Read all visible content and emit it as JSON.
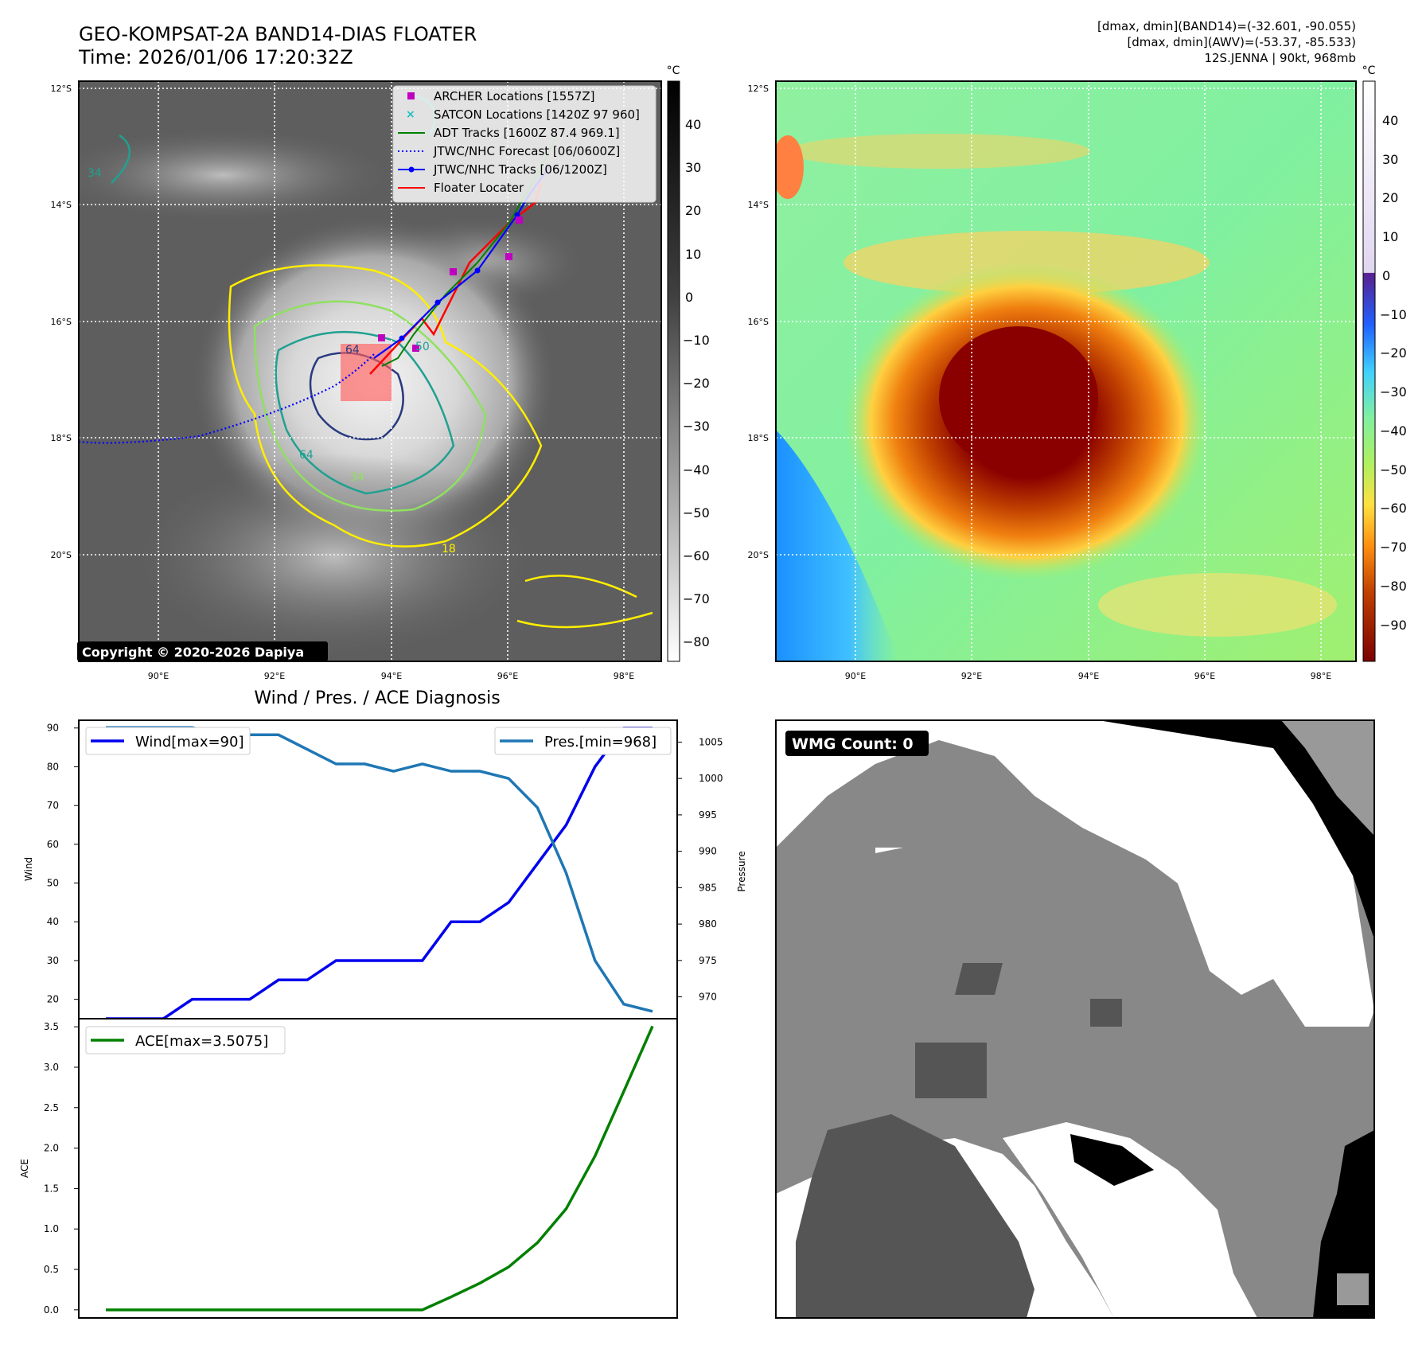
{
  "header": {
    "title": "GEO-KOMPSAT-2A BAND14-DIAS FLOATER",
    "time": "Time: 2026/01/06 17:20:32Z",
    "info_lines": [
      "[dmax, dmin](BAND14)=(-32.601, -90.055)",
      "[dmax, dmin](AWV)=(-53.37, -85.533)",
      "12S.JENNA | 90kt, 968mb"
    ]
  },
  "ir_panel": {
    "lat_labels": [
      "12°S",
      "14°S",
      "16°S",
      "18°S",
      "20°S"
    ],
    "lon_labels": [
      "90°E",
      "92°E",
      "94°E",
      "96°E",
      "98°E"
    ],
    "legend": [
      {
        "label": "ARCHER Locations [1557Z]",
        "style": "square",
        "color": "#c000c0"
      },
      {
        "label": "SATCON Locations [1420Z 97 960]",
        "style": "x",
        "color": "#20c0c0"
      },
      {
        "label": "ADT Tracks [1600Z 87.4 969.1]",
        "style": "line",
        "color": "#008000"
      },
      {
        "label": "JTWC/NHC Forecast [06/0600Z]",
        "style": "dotted",
        "color": "#0000ff"
      },
      {
        "label": "JTWC/NHC Tracks [06/1200Z]",
        "style": "line-dot",
        "color": "#0000ff"
      },
      {
        "label": "Floater Locater",
        "style": "line",
        "color": "#ff0000"
      }
    ],
    "copyright": "Copyright © 2020-2026 Dapiya",
    "contour_labels": [
      "64",
      "34",
      "50",
      "64",
      "34",
      "18"
    ],
    "colorbar": {
      "unit": "°C",
      "ticks": [
        "40",
        "30",
        "20",
        "10",
        "0",
        "−10",
        "−20",
        "−30",
        "−40",
        "−50",
        "−60",
        "−70",
        "−80"
      ]
    }
  },
  "awv_panel": {
    "lat_labels": [
      "12°S",
      "14°S",
      "16°S",
      "18°S",
      "20°S"
    ],
    "lon_labels": [
      "90°E",
      "92°E",
      "94°E",
      "96°E",
      "98°E"
    ],
    "colorbar": {
      "unit": "°C",
      "ticks": [
        "40",
        "30",
        "20",
        "10",
        "0",
        "−10",
        "−20",
        "−30",
        "−40",
        "−50",
        "−60",
        "−70",
        "−80",
        "−90"
      ]
    }
  },
  "wmg_panel": {
    "label": "WMG Count: 0"
  },
  "colors": {
    "wind": "#0000ee",
    "pressure": "#1f77b4",
    "ace": "#008000"
  },
  "chart_data": [
    {
      "type": "line",
      "title": "Wind / Pres. / ACE Diagnosis",
      "xlabel": "",
      "ylabel": "Wind",
      "y2label": "Pressure",
      "ylim": [
        15,
        92
      ],
      "y2lim": [
        967,
        1008
      ],
      "yticks": [
        "90",
        "80",
        "70",
        "60",
        "50",
        "40",
        "30",
        "20"
      ],
      "y2ticks": [
        "1005",
        "1000",
        "995",
        "990",
        "985",
        "980",
        "975",
        "970"
      ],
      "series": [
        {
          "name": "Wind[max=90]",
          "axis": "left",
          "values": [
            15,
            15,
            15,
            20,
            20,
            20,
            25,
            25,
            30,
            30,
            30,
            30,
            40,
            40,
            45,
            55,
            65,
            80,
            90,
            90
          ]
        },
        {
          "name": "Pres.[min=968]",
          "axis": "right",
          "values": [
            1007,
            1007,
            1007,
            1007,
            1006,
            1006,
            1006,
            1004,
            1002,
            1002,
            1001,
            1002,
            1001,
            1001,
            1000,
            996,
            987,
            975,
            969,
            968
          ]
        }
      ]
    },
    {
      "type": "line",
      "title": "",
      "xlabel": "",
      "ylabel": "ACE",
      "ylim": [
        -0.1,
        3.6
      ],
      "yticks": [
        "3.5",
        "3.0",
        "2.5",
        "2.0",
        "1.5",
        "1.0",
        "0.5",
        "0.0"
      ],
      "series": [
        {
          "name": "ACE[max=3.5075]",
          "values": [
            0,
            0,
            0,
            0,
            0,
            0,
            0,
            0,
            0,
            0,
            0,
            0,
            0.16,
            0.33,
            0.53,
            0.83,
            1.25,
            1.9,
            2.7,
            3.5075
          ]
        }
      ]
    }
  ]
}
